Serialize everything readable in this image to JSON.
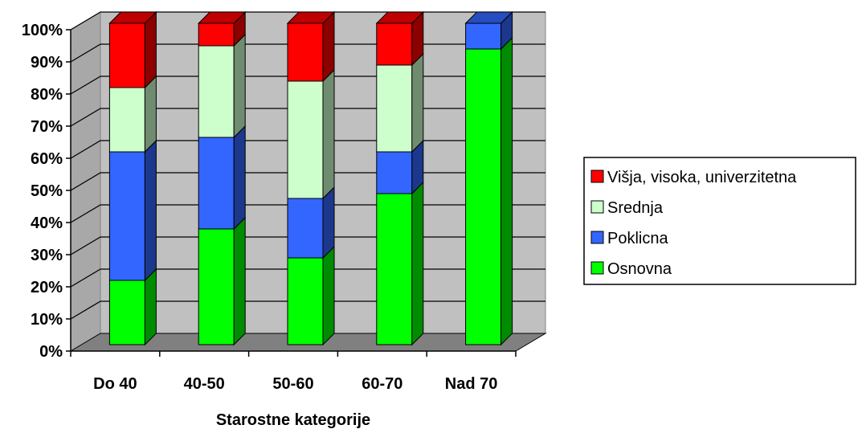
{
  "chart_data": {
    "type": "bar",
    "stacked": true,
    "percent": true,
    "title": "",
    "xlabel": "Starostne kategorije",
    "ylabel": "",
    "ylim": [
      0,
      100
    ],
    "yticks": [
      "0%",
      "10%",
      "20%",
      "30%",
      "40%",
      "50%",
      "60%",
      "70%",
      "80%",
      "90%",
      "100%"
    ],
    "grid": true,
    "legend_position": "right",
    "categories": [
      "Do 40",
      "40-50",
      "50-60",
      "60-70",
      "Nad 70"
    ],
    "series": [
      {
        "name": "Osnovna",
        "color": "#00FF00",
        "values": [
          20,
          36,
          27,
          47,
          92
        ]
      },
      {
        "name": "Poklicna",
        "color": "#3366FF",
        "values": [
          40,
          28.5,
          18.5,
          13,
          8
        ]
      },
      {
        "name": "Srednja",
        "color": "#CCFFCC",
        "values": [
          20,
          28.5,
          36.5,
          27,
          0
        ]
      },
      {
        "name": "Višja, visoka, univerzitetna",
        "color": "#FF0000",
        "values": [
          20,
          7,
          18,
          13,
          0
        ]
      }
    ],
    "legend_order": [
      "Višja, visoka, univerzitetna",
      "Srednja",
      "Poklicna",
      "Osnovna"
    ]
  }
}
